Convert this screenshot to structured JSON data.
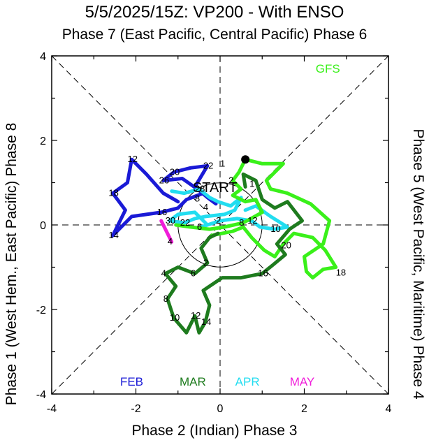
{
  "chart_data": {
    "type": "line",
    "title": "5/5/2025/15Z: VP200 - With ENSO",
    "subtitle": "Phase 7 (East Pacific, Central Pacific) Phase 6",
    "xlabel": "Phase 2 (Indian) Phase 3",
    "ylabel_left": "Phase 1 (West Hem., East Pacific) Phase 8",
    "ylabel_right": "Phase 5 (West Pacific, Maritime) Phase 4",
    "xlim": [
      -4,
      4
    ],
    "ylim": [
      -4,
      4
    ],
    "xticks": [
      "-4",
      "-2",
      "0",
      "2",
      "4"
    ],
    "yticks": [
      "-4",
      "-2",
      "0",
      "2",
      "4"
    ],
    "start_label": "START",
    "model_label": "GFS",
    "colors": {
      "FEB": "#1a1ad6",
      "MAR": "#1e7b1e",
      "APR": "#22ddf0",
      "MAY": "#f01cd9",
      "GFS": "#3af01a"
    },
    "legend": [
      {
        "name": "FEB",
        "color": "#1a1ad6"
      },
      {
        "name": "MAR",
        "color": "#1e7b1e"
      },
      {
        "name": "APR",
        "color": "#22ddf0"
      },
      {
        "name": "MAY",
        "color": "#f01cd9"
      }
    ],
    "series": [
      {
        "name": "FEB",
        "color": "#1a1ad6",
        "points": [
          [
            -1.0,
            0.55
          ],
          [
            -1.35,
            0.75
          ],
          [
            -1.75,
            1.2
          ],
          [
            -2.1,
            1.55
          ],
          [
            -2.2,
            1.0
          ],
          [
            -2.55,
            0.75
          ],
          [
            -2.25,
            0.35
          ],
          [
            -2.55,
            -0.25
          ],
          [
            -2.1,
            0.2
          ],
          [
            -1.4,
            0.3
          ],
          [
            -1.0,
            0.4
          ],
          [
            -0.8,
            0.6
          ],
          [
            -0.4,
            0.75
          ],
          [
            -0.9,
            1.1
          ],
          [
            -1.35,
            1.05
          ],
          [
            -1.1,
            1.25
          ],
          [
            -0.7,
            1.35
          ],
          [
            -0.3,
            1.4
          ],
          [
            -0.6,
            0.9
          ],
          [
            -0.3,
            0.65
          ],
          [
            -0.1,
            0.5
          ]
        ],
        "labels": [
          {
            "t": "12",
            "at": 3
          },
          {
            "t": "18",
            "at": 5
          },
          {
            "t": "14",
            "at": 7
          },
          {
            "t": "16",
            "at": 9
          },
          {
            "t": "26",
            "at": 14
          },
          {
            "t": "20",
            "at": 15
          },
          {
            "t": "22",
            "at": 17
          }
        ]
      },
      {
        "name": "APR",
        "color": "#22ddf0",
        "points": [
          [
            -1.15,
            0.8
          ],
          [
            -0.85,
            0.75
          ],
          [
            -0.5,
            0.85
          ],
          [
            -0.25,
            0.65
          ],
          [
            -0.05,
            0.55
          ],
          [
            0.25,
            0.45
          ],
          [
            0.5,
            0.65
          ],
          [
            0.35,
            0.35
          ],
          [
            0.1,
            0.25
          ],
          [
            -0.35,
            0.2
          ],
          [
            -0.6,
            0.15
          ],
          [
            -0.85,
            0.05
          ],
          [
            -1.2,
            0.1
          ],
          [
            -1.0,
            0.25
          ],
          [
            -0.6,
            0.3
          ],
          [
            -0.3,
            0.0
          ],
          [
            -0.45,
            -0.05
          ],
          [
            0.0,
            0.1
          ],
          [
            0.4,
            0.15
          ],
          [
            0.75,
            0.1
          ],
          [
            0.95,
            -0.05
          ],
          [
            1.3,
            -0.1
          ],
          [
            1.6,
            -0.05
          ],
          [
            1.2,
            0.2
          ],
          [
            0.85,
            0.45
          ],
          [
            0.6,
            0.35
          ]
        ],
        "labels": [
          {
            "t": "28",
            "at": 2
          },
          {
            "t": "22",
            "at": 11
          },
          {
            "t": "30",
            "at": 12
          },
          {
            "t": "6",
            "at": 16
          },
          {
            "t": "2",
            "at": 17
          },
          {
            "t": "12",
            "at": 19
          },
          {
            "t": "10",
            "at": 21
          }
        ]
      },
      {
        "name": "MAY",
        "color": "#f01cd9",
        "points": [
          [
            -1.4,
            0.1
          ],
          [
            -1.25,
            -0.2
          ],
          [
            -1.15,
            -0.4
          ]
        ],
        "labels": [
          {
            "t": "4",
            "at": 2
          }
        ]
      },
      {
        "name": "MAR",
        "color": "#1e7b1e",
        "points": [
          [
            0.6,
            0.9
          ],
          [
            0.55,
            1.2
          ],
          [
            0.85,
            1.05
          ],
          [
            1.0,
            0.6
          ],
          [
            1.3,
            0.4
          ],
          [
            1.6,
            0.55
          ],
          [
            1.95,
            0.1
          ],
          [
            1.65,
            -0.1
          ],
          [
            1.35,
            -0.45
          ],
          [
            1.55,
            -0.7
          ],
          [
            1.25,
            -0.95
          ],
          [
            1.0,
            -1.15
          ],
          [
            0.5,
            -1.25
          ],
          [
            0.05,
            -1.25
          ],
          [
            -0.4,
            -1.55
          ],
          [
            -0.25,
            -1.9
          ],
          [
            -0.35,
            -2.3
          ],
          [
            -0.5,
            -2.55
          ],
          [
            -0.6,
            -2.15
          ],
          [
            -0.8,
            -2.55
          ],
          [
            -1.1,
            -2.2
          ],
          [
            -1.25,
            -1.75
          ],
          [
            -1.05,
            -1.45
          ],
          [
            -1.3,
            -1.15
          ],
          [
            -1.0,
            -1.0
          ],
          [
            -0.6,
            -1.15
          ],
          [
            -0.3,
            -0.9
          ],
          [
            -0.45,
            -0.55
          ],
          [
            -0.25,
            -0.3
          ],
          [
            -0.05,
            -0.2
          ]
        ],
        "labels": [
          {
            "t": "16",
            "at": 11
          },
          {
            "t": "14",
            "at": 16
          },
          {
            "t": "12",
            "at": 18
          },
          {
            "t": "10",
            "at": 20
          },
          {
            "t": "8",
            "at": 21
          },
          {
            "t": "4",
            "at": 23
          },
          {
            "t": "6",
            "at": 25
          },
          {
            "t": "2",
            "at": 26
          }
        ]
      },
      {
        "name": "GFS",
        "color": "#3af01a",
        "points": [
          [
            0.6,
            1.55
          ],
          [
            0.45,
            1.25
          ],
          [
            0.3,
            1.05
          ],
          [
            0.5,
            0.85
          ],
          [
            0.3,
            0.7
          ],
          [
            0.6,
            0.55
          ],
          [
            0.85,
            0.6
          ],
          [
            1.0,
            0.3
          ],
          [
            0.55,
            0.05
          ],
          [
            0.1,
            -0.05
          ],
          [
            -0.25,
            -0.1
          ],
          [
            -0.7,
            -0.05
          ],
          [
            -1.05,
            0.0
          ]
        ],
        "labels": [
          {
            "t": "4",
            "at": 0
          },
          {
            "t": "2",
            "at": 2
          },
          {
            "t": "8",
            "at": 8
          }
        ]
      }
    ],
    "gfs_forecast": [
      [
        0.6,
        1.55
      ],
      [
        1.0,
        1.45
      ],
      [
        1.5,
        1.45
      ],
      [
        1.1,
        1.05
      ],
      [
        1.2,
        0.85
      ],
      [
        1.6,
        0.75
      ],
      [
        2.15,
        0.5
      ],
      [
        2.6,
        0.1
      ],
      [
        2.45,
        -0.45
      ],
      [
        2.0,
        -0.75
      ],
      [
        2.05,
        -1.1
      ],
      [
        2.2,
        -1.25
      ],
      [
        2.45,
        -1.05
      ],
      [
        2.75,
        -1.0
      ],
      [
        2.5,
        -0.6
      ],
      [
        2.2,
        -0.3
      ],
      [
        1.75,
        -0.2
      ],
      [
        1.5,
        -0.45
      ],
      [
        1.3,
        -0.75
      ],
      [
        1.05,
        -0.6
      ],
      [
        0.75,
        -0.3
      ],
      [
        0.55,
        -0.05
      ],
      [
        0.3,
        -0.15
      ],
      [
        0.05,
        -0.2
      ],
      [
        -0.2,
        -0.25
      ]
    ],
    "start": [
      0.6,
      1.55
    ],
    "extra_labels": [
      {
        "t": "1",
        "x": 0.0,
        "y": 1.38
      },
      {
        "t": "4",
        "x": -0.4,
        "y": 0.35
      },
      {
        "t": "1",
        "x": 0.7,
        "y": 0.9
      },
      {
        "t": "8",
        "x": -0.6,
        "y": 0.55
      },
      {
        "t": "20",
        "x": 1.45,
        "y": -0.55
      },
      {
        "t": "18",
        "x": 2.75,
        "y": -1.2
      }
    ]
  }
}
